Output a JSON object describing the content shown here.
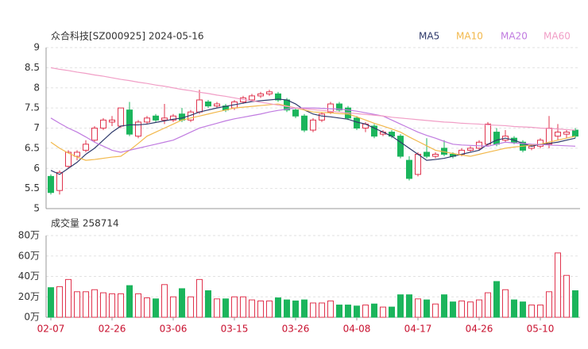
{
  "chart_data": [
    {
      "type": "candlestick",
      "title": "众合科技[SZ000925] 2024-05-16",
      "up_color": "#e0344e",
      "down_color": "#1bb55c",
      "open": [
        5.8,
        5.45,
        6.05,
        6.3,
        6.45,
        6.7,
        7.0,
        7.15,
        7.05,
        7.45,
        6.8,
        7.15,
        7.3,
        7.2,
        7.2,
        7.35,
        7.2,
        7.4,
        7.65,
        7.55,
        7.55,
        7.5,
        7.65,
        7.7,
        7.8,
        7.85,
        7.85,
        7.7,
        7.45,
        7.3,
        6.95,
        7.2,
        7.4,
        7.6,
        7.5,
        7.25,
        7.0,
        7.05,
        6.85,
        6.9,
        6.8,
        6.2,
        5.85,
        6.4,
        6.3,
        6.5,
        6.35,
        6.35,
        6.45,
        6.5,
        6.6,
        6.9,
        6.7,
        6.75,
        6.65,
        6.5,
        6.55,
        6.6,
        6.8,
        6.85,
        6.95
      ],
      "high": [
        5.85,
        5.95,
        6.45,
        6.45,
        6.7,
        7.05,
        7.25,
        7.3,
        7.5,
        7.65,
        7.2,
        7.3,
        7.35,
        7.6,
        7.35,
        7.5,
        7.45,
        7.95,
        7.7,
        7.65,
        7.6,
        7.7,
        7.8,
        7.85,
        7.9,
        7.95,
        7.9,
        7.75,
        7.5,
        7.35,
        7.25,
        7.4,
        7.65,
        7.65,
        7.55,
        7.3,
        7.15,
        7.1,
        6.95,
        6.95,
        6.85,
        6.3,
        6.4,
        6.75,
        6.4,
        6.7,
        6.4,
        6.5,
        6.55,
        6.7,
        7.15,
        7.0,
        6.95,
        6.8,
        6.7,
        6.6,
        6.75,
        7.3,
        7.1,
        6.95,
        7.0
      ],
      "low": [
        5.35,
        5.35,
        6.0,
        6.2,
        6.4,
        6.65,
        6.95,
        7.05,
        7.0,
        6.8,
        6.75,
        7.1,
        7.15,
        7.1,
        7.15,
        7.15,
        7.15,
        7.35,
        7.5,
        7.5,
        7.4,
        7.45,
        7.6,
        7.65,
        7.75,
        7.8,
        7.65,
        7.4,
        7.25,
        6.9,
        6.9,
        7.15,
        7.35,
        7.4,
        7.2,
        6.95,
        6.9,
        6.75,
        6.8,
        6.75,
        6.25,
        5.7,
        5.8,
        6.25,
        6.25,
        6.3,
        6.25,
        6.3,
        6.4,
        6.45,
        6.55,
        6.55,
        6.65,
        6.6,
        6.4,
        6.45,
        6.5,
        6.5,
        6.7,
        6.75,
        6.75
      ],
      "close": [
        5.4,
        5.9,
        6.4,
        6.4,
        6.6,
        7.0,
        7.2,
        7.2,
        7.5,
        6.85,
        7.15,
        7.25,
        7.2,
        7.25,
        7.3,
        7.2,
        7.4,
        7.7,
        7.55,
        7.6,
        7.45,
        7.65,
        7.75,
        7.8,
        7.85,
        7.9,
        7.7,
        7.45,
        7.3,
        6.95,
        7.2,
        7.35,
        7.6,
        7.45,
        7.25,
        7.0,
        7.1,
        6.8,
        6.9,
        6.8,
        6.3,
        5.75,
        6.35,
        6.3,
        6.35,
        6.35,
        6.3,
        6.45,
        6.5,
        6.65,
        7.1,
        6.6,
        6.8,
        6.65,
        6.45,
        6.55,
        6.7,
        7.0,
        6.9,
        6.9,
        6.8
      ],
      "series": [
        {
          "name": "MA5",
          "color": "#2f3a6b",
          "values": [
            5.95,
            5.85,
            6.0,
            6.15,
            6.35,
            6.5,
            6.7,
            6.9,
            7.05,
            7.08,
            7.08,
            7.1,
            7.14,
            7.18,
            7.22,
            7.25,
            7.32,
            7.4,
            7.45,
            7.5,
            7.54,
            7.58,
            7.62,
            7.66,
            7.68,
            7.7,
            7.72,
            7.7,
            7.6,
            7.45,
            7.35,
            7.3,
            7.28,
            7.25,
            7.22,
            7.15,
            7.1,
            7.0,
            6.9,
            6.8,
            6.65,
            6.5,
            6.35,
            6.2,
            6.22,
            6.25,
            6.3,
            6.35,
            6.4,
            6.45,
            6.6,
            6.7,
            6.75,
            6.7,
            6.62,
            6.55,
            6.6,
            6.62,
            6.65,
            6.7,
            6.75
          ]
        },
        {
          "name": "MA10",
          "color": "#f2b84b",
          "values": [
            6.65,
            6.5,
            6.38,
            6.28,
            6.2,
            6.22,
            6.25,
            6.28,
            6.3,
            6.45,
            6.62,
            6.8,
            6.9,
            7.0,
            7.1,
            7.2,
            7.25,
            7.3,
            7.35,
            7.4,
            7.45,
            7.5,
            7.52,
            7.54,
            7.56,
            7.58,
            7.6,
            7.55,
            7.5,
            7.45,
            7.4,
            7.39,
            7.38,
            7.36,
            7.35,
            7.28,
            7.2,
            7.12,
            7.05,
            6.98,
            6.9,
            6.78,
            6.67,
            6.56,
            6.45,
            6.41,
            6.37,
            6.33,
            6.3,
            6.35,
            6.4,
            6.45,
            6.5,
            6.53,
            6.55,
            6.58,
            6.6,
            6.65,
            6.7,
            6.75,
            6.8
          ]
        },
        {
          "name": "MA20",
          "color": "#c07be0",
          "values": [
            7.25,
            7.12,
            7.0,
            6.9,
            6.78,
            6.65,
            6.55,
            6.45,
            6.4,
            6.45,
            6.5,
            6.55,
            6.6,
            6.65,
            6.7,
            6.8,
            6.9,
            7.0,
            7.06,
            7.12,
            7.18,
            7.23,
            7.27,
            7.31,
            7.35,
            7.4,
            7.44,
            7.47,
            7.5,
            7.5,
            7.5,
            7.49,
            7.48,
            7.47,
            7.45,
            7.42,
            7.38,
            7.34,
            7.3,
            7.2,
            7.1,
            7.0,
            6.9,
            6.82,
            6.75,
            6.67,
            6.6,
            6.58,
            6.57,
            6.56,
            6.55,
            6.6,
            6.65,
            6.63,
            6.62,
            6.6,
            6.59,
            6.58,
            6.57,
            6.56,
            6.55
          ]
        },
        {
          "name": "MA60",
          "color": "#f19ec6",
          "values": [
            8.5,
            8.46,
            8.43,
            8.39,
            8.36,
            8.32,
            8.29,
            8.25,
            8.21,
            8.18,
            8.14,
            8.11,
            8.07,
            8.04,
            8.0,
            7.96,
            7.93,
            7.89,
            7.86,
            7.82,
            7.79,
            7.75,
            7.71,
            7.68,
            7.64,
            7.61,
            7.57,
            7.54,
            7.5,
            7.48,
            7.46,
            7.44,
            7.42,
            7.4,
            7.38,
            7.36,
            7.34,
            7.32,
            7.3,
            7.27,
            7.25,
            7.23,
            7.21,
            7.19,
            7.17,
            7.15,
            7.14,
            7.12,
            7.11,
            7.1,
            7.08,
            7.07,
            7.06,
            7.04,
            7.03,
            7.02,
            7.0,
            6.99,
            6.98,
            6.96,
            6.95
          ]
        }
      ],
      "ylim": [
        5,
        9
      ],
      "yticks": [
        5,
        5.5,
        6,
        6.5,
        7,
        7.5,
        8,
        8.5,
        9
      ],
      "grid": true
    },
    {
      "type": "bar",
      "title": "成交量 258714",
      "up_color": "#e0344e",
      "down_color": "#1bb55c",
      "categories": [
        "02-07",
        null,
        null,
        null,
        null,
        null,
        null,
        "02-26",
        null,
        null,
        null,
        null,
        null,
        null,
        "03-06",
        null,
        null,
        null,
        null,
        null,
        null,
        "03-15",
        null,
        null,
        null,
        null,
        null,
        null,
        "03-26",
        null,
        null,
        null,
        null,
        null,
        null,
        "04-08",
        null,
        null,
        null,
        null,
        null,
        null,
        "04-17",
        null,
        null,
        null,
        null,
        null,
        null,
        "04-26",
        null,
        null,
        null,
        null,
        null,
        null,
        "05-10",
        null,
        null,
        null,
        null
      ],
      "values": [
        29,
        30,
        37,
        25,
        25,
        27,
        24,
        23,
        23,
        31,
        23,
        19,
        18,
        32,
        20,
        28,
        20,
        37,
        26,
        18,
        18,
        20,
        20,
        17,
        16,
        16,
        19,
        17,
        16,
        17,
        14,
        14,
        16,
        12,
        12,
        11,
        12,
        13,
        10,
        10,
        22,
        22,
        18,
        17,
        13,
        22,
        15,
        16,
        15,
        17,
        24,
        35,
        27,
        17,
        15,
        12,
        12,
        25,
        63,
        41,
        26
      ],
      "ylim": [
        0,
        80
      ],
      "yticks": [
        {
          "value": 0,
          "label": "0万"
        },
        {
          "value": 20,
          "label": "20万"
        },
        {
          "value": 40,
          "label": "40万"
        },
        {
          "value": 60,
          "label": "60万"
        },
        {
          "value": 80,
          "label": "80万"
        }
      ],
      "grid": true
    }
  ]
}
